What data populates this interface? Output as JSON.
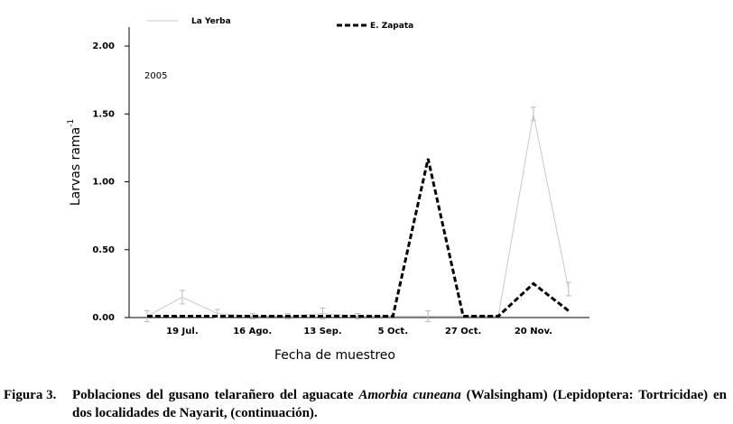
{
  "chart_data": {
    "type": "line",
    "annotation": "2005",
    "xlabel": "Fecha de muestreo",
    "ylabel": "Larvas  rama",
    "ylabel_sup": "-1",
    "categories": [
      null,
      "19 Jul.",
      null,
      "16 Ago.",
      null,
      "13 Sep.",
      null,
      "5 Oct.",
      null,
      "27 Oct.",
      null,
      "20 Nov.",
      null
    ],
    "series": [
      {
        "name": "La Yerba",
        "color": "#c8c8c8",
        "dash": false,
        "values": [
          0.01,
          0.15,
          0.03,
          0.01,
          0.01,
          0.03,
          0.01,
          0.01,
          0.01,
          0.01,
          0.01,
          1.5,
          0.21
        ],
        "errors": [
          0.04,
          0.05,
          0.03,
          0.02,
          0.02,
          0.04,
          0.02,
          0.0,
          0.04,
          0.0,
          0.0,
          0.05,
          0.05
        ]
      },
      {
        "name": "E. Zapata",
        "color": "#000000",
        "dash": true,
        "values": [
          0.01,
          0.01,
          0.01,
          0.01,
          0.01,
          0.01,
          0.01,
          0.01,
          1.17,
          0.01,
          0.01,
          0.25,
          0.05
        ]
      }
    ],
    "ylim": [
      0,
      2.14
    ],
    "yticks": [
      {
        "value": 0,
        "label": "0.00"
      },
      {
        "value": 0.5,
        "label": "0.50"
      },
      {
        "value": 1,
        "label": "1.00"
      },
      {
        "value": 1.5,
        "label": "1.50"
      },
      {
        "value": 2,
        "label": "2.00"
      }
    ],
    "legend": "top"
  },
  "caption": {
    "label": "Figura 3.",
    "before": "Poblaciones del gusano telarañero del aguacate ",
    "species": "Amorbia cuneana",
    "after": " (Walsingham) (Lepidoptera: Tortricidae) en dos localidades de Nayarit, (continuación)."
  }
}
